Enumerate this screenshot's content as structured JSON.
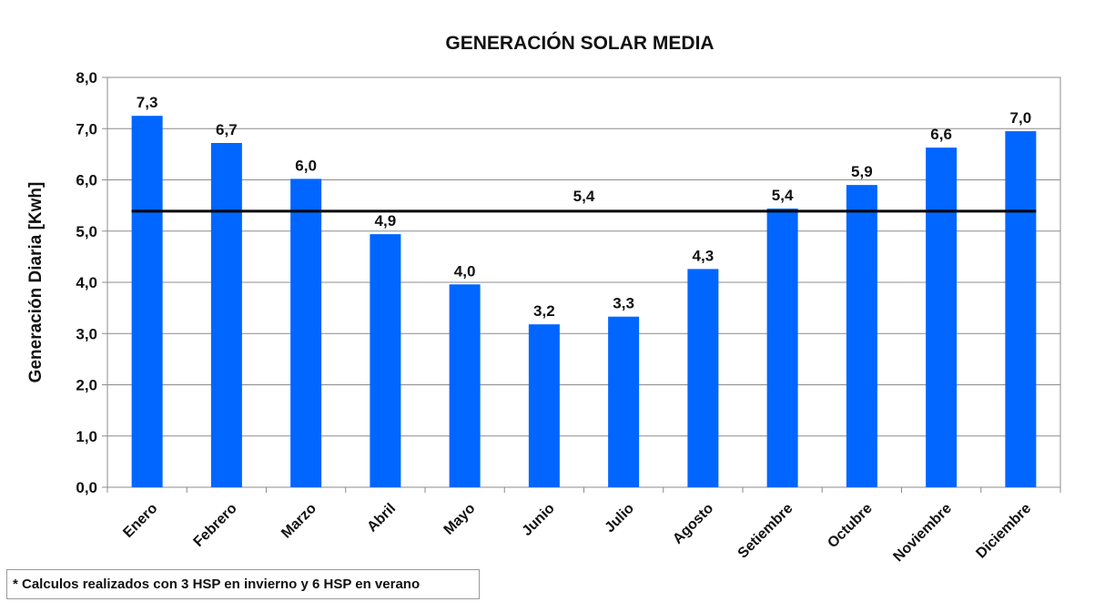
{
  "chart_data": {
    "type": "bar",
    "title": "GENERACIÓN SOLAR MEDIA",
    "ylabel": "Generación Diaria [Kwh]",
    "xlabel": "",
    "ylim": [
      0,
      8
    ],
    "ytick_values": [
      0,
      1,
      2,
      3,
      4,
      5,
      6,
      7,
      8
    ],
    "ytick_labels": [
      "0,0",
      "1,0",
      "2,0",
      "3,0",
      "4,0",
      "5,0",
      "6,0",
      "7,0",
      "8,0"
    ],
    "categories": [
      "Enero",
      "Febrero",
      "Marzo",
      "Abril",
      "Mayo",
      "Junio",
      "Julio",
      "Agosto",
      "Setiembre",
      "Octubre",
      "Noviembre",
      "Diciembre"
    ],
    "values": [
      7.25,
      6.72,
      6.02,
      4.94,
      3.96,
      3.18,
      3.33,
      4.26,
      5.44,
      5.9,
      6.63,
      6.95
    ],
    "data_labels": [
      "7,3",
      "6,7",
      "6,0",
      "4,9",
      "4,0",
      "3,2",
      "3,3",
      "4,3",
      "5,4",
      "5,9",
      "6,6",
      "7,0"
    ],
    "reference_line": {
      "value": 5.39,
      "label": "5,4",
      "color": "#000000"
    },
    "bar_color": "#0066ff",
    "grid": true,
    "legend": "none"
  },
  "footnote": "* Calculos realizados con 3 HSP en invierno y 6 HSP en verano"
}
